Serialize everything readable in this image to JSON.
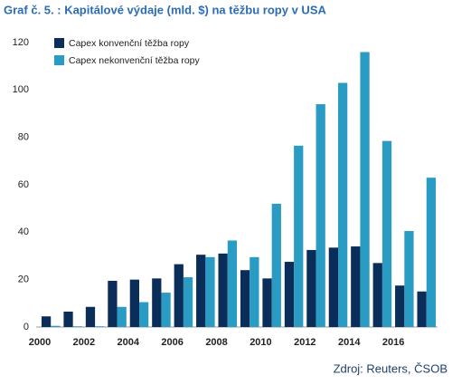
{
  "chart_data": {
    "type": "bar",
    "title": "Graf č. 5. : Kapitálové výdaje (mld. $) na těžbu ropy v USA",
    "source": "Zdroj: Reuters, ČSOB",
    "categories": [
      "2000",
      null,
      "2002",
      null,
      "2004",
      null,
      "2006",
      null,
      "2008",
      null,
      "2010",
      null,
      "2012",
      null,
      "2014",
      null,
      "2016",
      null
    ],
    "series": [
      {
        "name": "Capex konvenční těžba ropy",
        "color": "#0b2d5a",
        "values": [
          4.5,
          6.5,
          8.5,
          19.5,
          20,
          20.5,
          26.5,
          30.5,
          31,
          24,
          20.5,
          27.5,
          32.5,
          33.5,
          34,
          27,
          17.5,
          15
        ]
      },
      {
        "name": "Capex nekonvenční těžba ropy",
        "color": "#2a9cc4",
        "values": [
          0.5,
          0.3,
          0.3,
          8.5,
          10.5,
          14.5,
          21,
          29.5,
          36.5,
          29.5,
          52,
          76.5,
          94,
          103,
          116,
          78.5,
          40.5,
          63
        ]
      }
    ],
    "ylim": [
      0,
      120
    ],
    "yticks": [
      0,
      20,
      40,
      60,
      80,
      100,
      120
    ],
    "grid": false,
    "legend": "top-left"
  }
}
